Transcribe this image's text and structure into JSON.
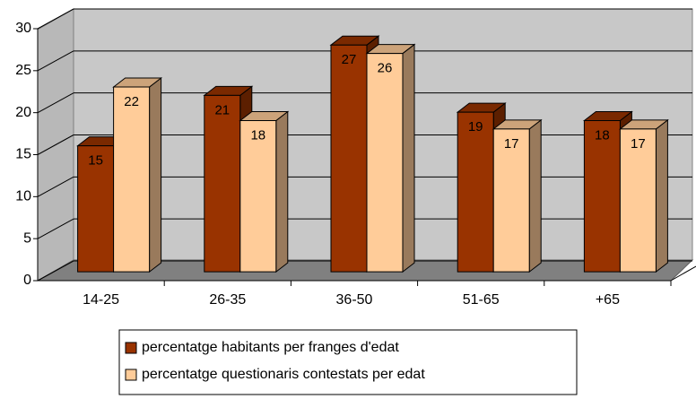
{
  "chart_data": {
    "type": "bar3d",
    "categories": [
      "14-25",
      "26-35",
      "36-50",
      "51-65",
      "+65"
    ],
    "series": [
      {
        "name": "percentatge habitants per franges d'edat",
        "color": "#993300",
        "values": [
          15,
          21,
          27,
          19,
          18
        ]
      },
      {
        "name": "percentatge questionaris contestats per edat",
        "color": "#ffcc99",
        "values": [
          22,
          18,
          26,
          17,
          17
        ]
      }
    ],
    "ylim": [
      0,
      30
    ],
    "yticks": [
      0,
      5,
      10,
      15,
      20,
      25,
      30
    ],
    "grid": true,
    "legend": "bottom"
  }
}
